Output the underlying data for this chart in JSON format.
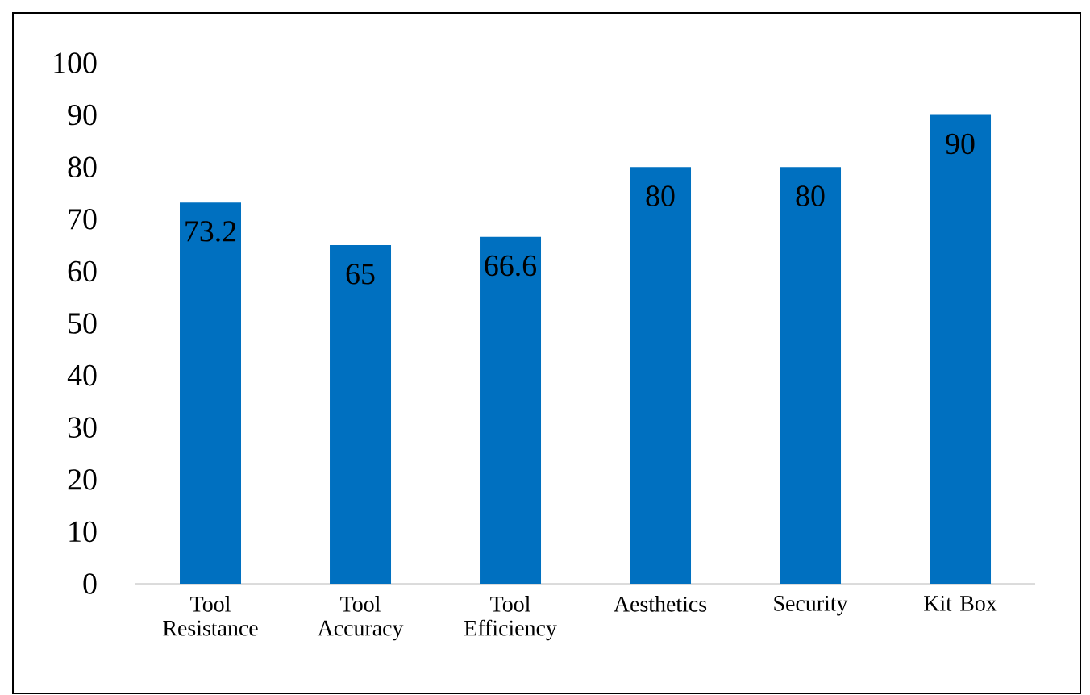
{
  "chart_data": {
    "type": "bar",
    "categories": [
      "Tool Resistance",
      "Tool Accuracy",
      "Tool Efficiency",
      "Aesthetics",
      "Security",
      "Kit Box"
    ],
    "values": [
      73.2,
      65,
      66.6,
      80,
      80,
      90
    ],
    "color": "#0070c0",
    "ylim": [
      0,
      100
    ],
    "yticks": [
      0,
      10,
      20,
      30,
      40,
      50,
      60,
      70,
      80,
      90,
      100
    ],
    "data_labels": true
  }
}
